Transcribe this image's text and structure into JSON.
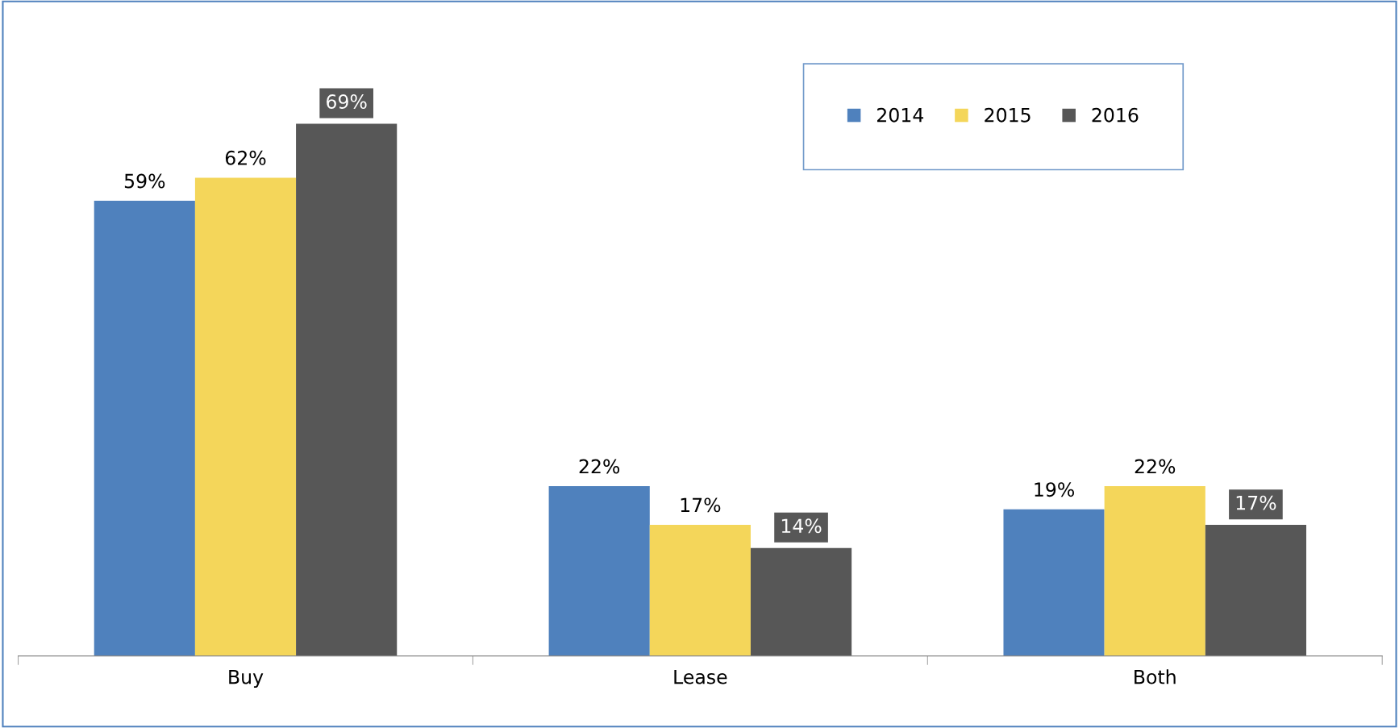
{
  "chart_data": {
    "type": "bar",
    "categories": [
      "Buy",
      "Lease",
      "Both"
    ],
    "series": [
      {
        "name": "2014",
        "color": "#4f81bd",
        "values": [
          59,
          22,
          19
        ],
        "value_labels": [
          "59%",
          "22%",
          "19%"
        ]
      },
      {
        "name": "2015",
        "color": "#f4d65a",
        "values": [
          62,
          17,
          22
        ],
        "value_labels": [
          "62%",
          "17%",
          "22%"
        ]
      },
      {
        "name": "2016",
        "color": "#575757",
        "values": [
          69,
          14,
          17
        ],
        "value_labels": [
          "69%",
          "14%",
          "17%"
        ]
      }
    ],
    "legend": "top right",
    "grid": false
  }
}
